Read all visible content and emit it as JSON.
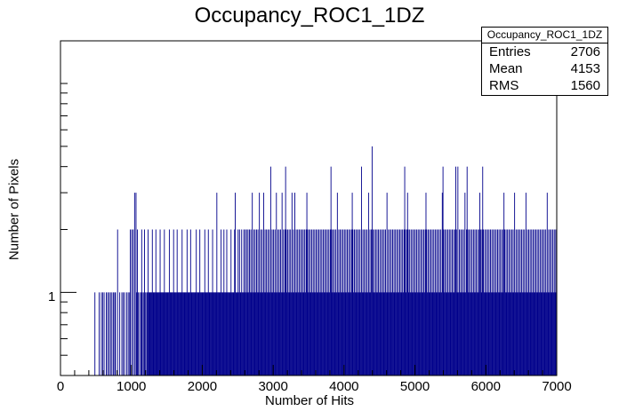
{
  "chart_data": {
    "type": "bar",
    "title": "Occupancy_ROC1_1DZ",
    "xlabel": "Number of Hits",
    "ylabel": "Number of Pixels",
    "xlim": [
      0,
      7000
    ],
    "ylim_log": [
      0.4,
      16
    ],
    "log_y": true,
    "grid": false,
    "bar_color": "#00008b",
    "x_tick_labels": [
      "0",
      "1000",
      "2000",
      "3000",
      "4000",
      "5000",
      "6000",
      "7000"
    ],
    "y_tick_labels": [
      "1"
    ],
    "stats": {
      "name": "Occupancy_ROC1_1DZ",
      "rows": [
        {
          "label": "Entries",
          "value": "2706"
        },
        {
          "label": "Mean",
          "value": "4153"
        },
        {
          "label": "RMS",
          "value": "1560"
        }
      ]
    },
    "bin_width": 10,
    "bins": {
      "ones_range": [
        1220,
        7000
      ],
      "sparse_ones": [
        480,
        540,
        570,
        590,
        610,
        640,
        660,
        680,
        700,
        720,
        740,
        760,
        770,
        800,
        830,
        860,
        880,
        900,
        930,
        950,
        970,
        1000,
        1020,
        1040,
        1070,
        1090,
        1110,
        1130,
        1150,
        1170,
        1190,
        1210
      ],
      "twos": [
        800,
        980,
        1000,
        1020,
        1060,
        1080,
        1140,
        1180,
        1230,
        1290,
        1340,
        1400,
        1460,
        1530,
        1590,
        1640,
        1710,
        1780,
        1830,
        1910,
        1960,
        2030,
        2080,
        2140,
        2200,
        2260,
        2300,
        2340,
        2400,
        2450,
        2500,
        2520,
        2550,
        2580,
        2600,
        2620,
        2640,
        2660,
        2680,
        2700,
        2720,
        2740,
        2760,
        2780,
        2800,
        2820,
        2840,
        2860,
        2880,
        2900,
        2920,
        2940,
        2960,
        2980,
        3000,
        3020,
        3040,
        3060,
        3080,
        3100,
        3120,
        3140,
        3160,
        3180,
        3200,
        3220,
        3240,
        3260,
        3280,
        3300,
        3320,
        3340,
        3360,
        3380,
        3400,
        3420,
        3440,
        3460,
        3480,
        3500,
        3520,
        3540,
        3560,
        3580,
        3600,
        3620,
        3640,
        3660,
        3680,
        3700,
        3720,
        3740,
        3760,
        3780,
        3800,
        3820,
        3840,
        3860,
        3880,
        3900,
        3920,
        3940,
        3960,
        3980,
        4000,
        4020,
        4040,
        4060,
        4080,
        4100,
        4120,
        4140,
        4160,
        4180,
        4200,
        4220,
        4240,
        4260,
        4280,
        4300,
        4320,
        4340,
        4360,
        4380,
        4400,
        4420,
        4440,
        4460,
        4480,
        4500,
        4520,
        4540,
        4560,
        4580,
        4600,
        4620,
        4640,
        4660,
        4680,
        4700,
        4720,
        4740,
        4760,
        4780,
        4800,
        4820,
        4840,
        4860,
        4880,
        4900,
        4920,
        4940,
        4960,
        4980,
        5000,
        5020,
        5040,
        5060,
        5080,
        5100,
        5120,
        5140,
        5160,
        5180,
        5200,
        5220,
        5240,
        5260,
        5280,
        5300,
        5320,
        5340,
        5360,
        5380,
        5400,
        5420,
        5440,
        5460,
        5480,
        5500,
        5520,
        5540,
        5560,
        5580,
        5600,
        5620,
        5640,
        5660,
        5680,
        5700,
        5720,
        5740,
        5760,
        5780,
        5800,
        5820,
        5840,
        5860,
        5880,
        5900,
        5920,
        5940,
        5960,
        5980,
        6000,
        6020,
        6040,
        6060,
        6080,
        6100,
        6120,
        6140,
        6160,
        6180,
        6200,
        6220,
        6240,
        6260,
        6280,
        6300,
        6320,
        6340,
        6360,
        6380,
        6400,
        6420,
        6440,
        6460,
        6480,
        6500,
        6520,
        6540,
        6560,
        6580,
        6600,
        6620,
        6640,
        6660,
        6680,
        6700,
        6720,
        6740,
        6760,
        6780,
        6800,
        6820,
        6840,
        6860,
        6880,
        6900,
        6920,
        6940,
        6960,
        6980
      ],
      "threes": [
        1040,
        1060,
        2200,
        2460,
        2700,
        2800,
        2860,
        3040,
        3120,
        3260,
        3300,
        3470,
        3900,
        4110,
        4340,
        4600,
        4890,
        5150,
        5380,
        5700,
        5910,
        6250,
        6400,
        6560,
        6860
      ],
      "fours": [
        2960,
        3170,
        3810,
        4240,
        4850,
        5390,
        5570,
        5600,
        5730,
        5950
      ],
      "fives": [
        4390
      ]
    }
  }
}
